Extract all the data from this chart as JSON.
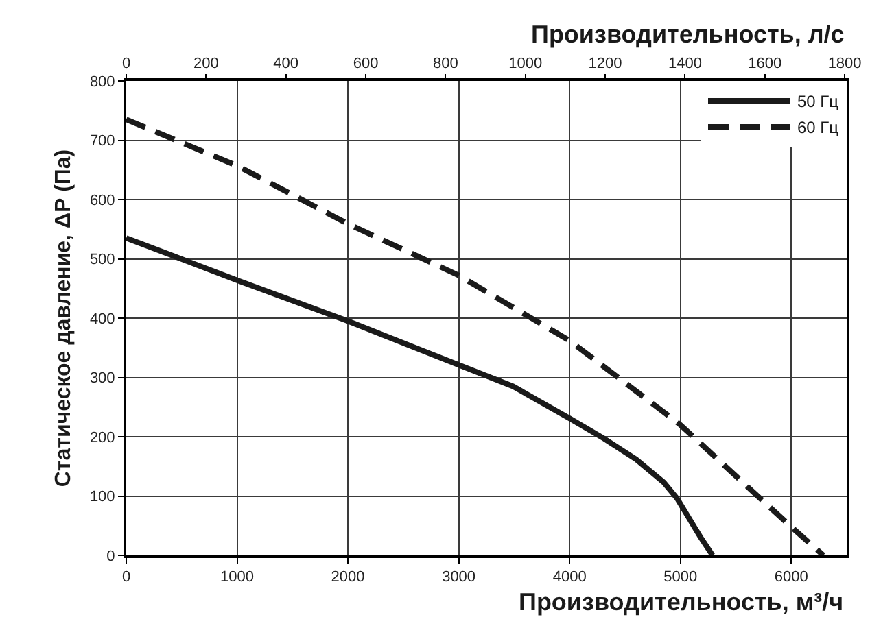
{
  "chart_data": {
    "type": "line",
    "xlabel": "Производительность, м³/ч",
    "x2label": "Производительность, л/с",
    "ylabel": "Статическое давление, ΔР (Па)",
    "xlim": [
      0,
      6500
    ],
    "xticks": [
      0,
      1000,
      2000,
      3000,
      4000,
      5000,
      6000
    ],
    "x2lim": [
      0,
      1805
    ],
    "x2ticks": [
      0,
      200,
      400,
      600,
      800,
      1000,
      1200,
      1400,
      1600,
      1800
    ],
    "ylim": [
      0,
      800
    ],
    "yticks": [
      0,
      100,
      200,
      300,
      400,
      500,
      600,
      700,
      800
    ],
    "grid": true,
    "legend": "top right",
    "series": [
      {
        "name": "50 Гц",
        "color": "#1a1a1a",
        "line_style": "solid",
        "x": [
          0,
          1000,
          2000,
          3000,
          3490,
          4000,
          4310,
          4600,
          4850,
          4970,
          5070,
          5180,
          5290
        ],
        "values": [
          535,
          464,
          395,
          321,
          285,
          231,
          197,
          162,
          123,
          96,
          65,
          31,
          0
        ]
      },
      {
        "name": "60 Гц",
        "color": "#1a1a1a",
        "line_style": "dashed",
        "x": [
          0,
          1000,
          2000,
          3000,
          4000,
          4430,
          5000,
          5650,
          6000,
          6290
        ],
        "values": [
          735,
          657,
          559,
          472,
          362,
          301,
          220,
          108,
          48,
          0
        ]
      }
    ]
  }
}
